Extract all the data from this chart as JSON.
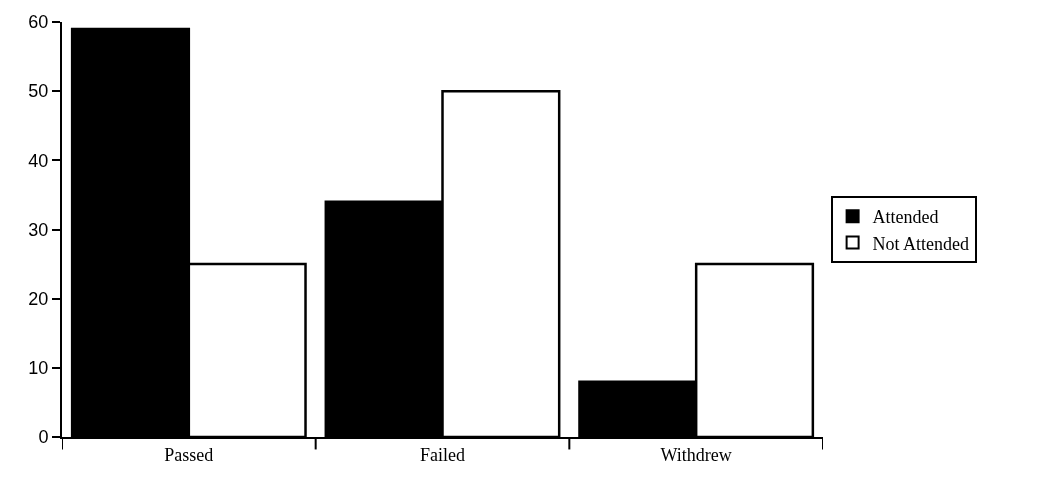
{
  "chart_data": {
    "type": "bar",
    "categories": [
      "Passed",
      "Failed",
      "Withdrew"
    ],
    "series": [
      {
        "name": "Attended",
        "color": "#000000",
        "values": [
          59,
          34,
          8
        ]
      },
      {
        "name": "Not Attended",
        "color": "#ffffff",
        "values": [
          25,
          50,
          25
        ]
      }
    ],
    "ylim": [
      0,
      60
    ],
    "yticks": [
      0,
      10,
      20,
      30,
      40,
      50,
      60
    ],
    "grid": false,
    "legend": "right"
  }
}
